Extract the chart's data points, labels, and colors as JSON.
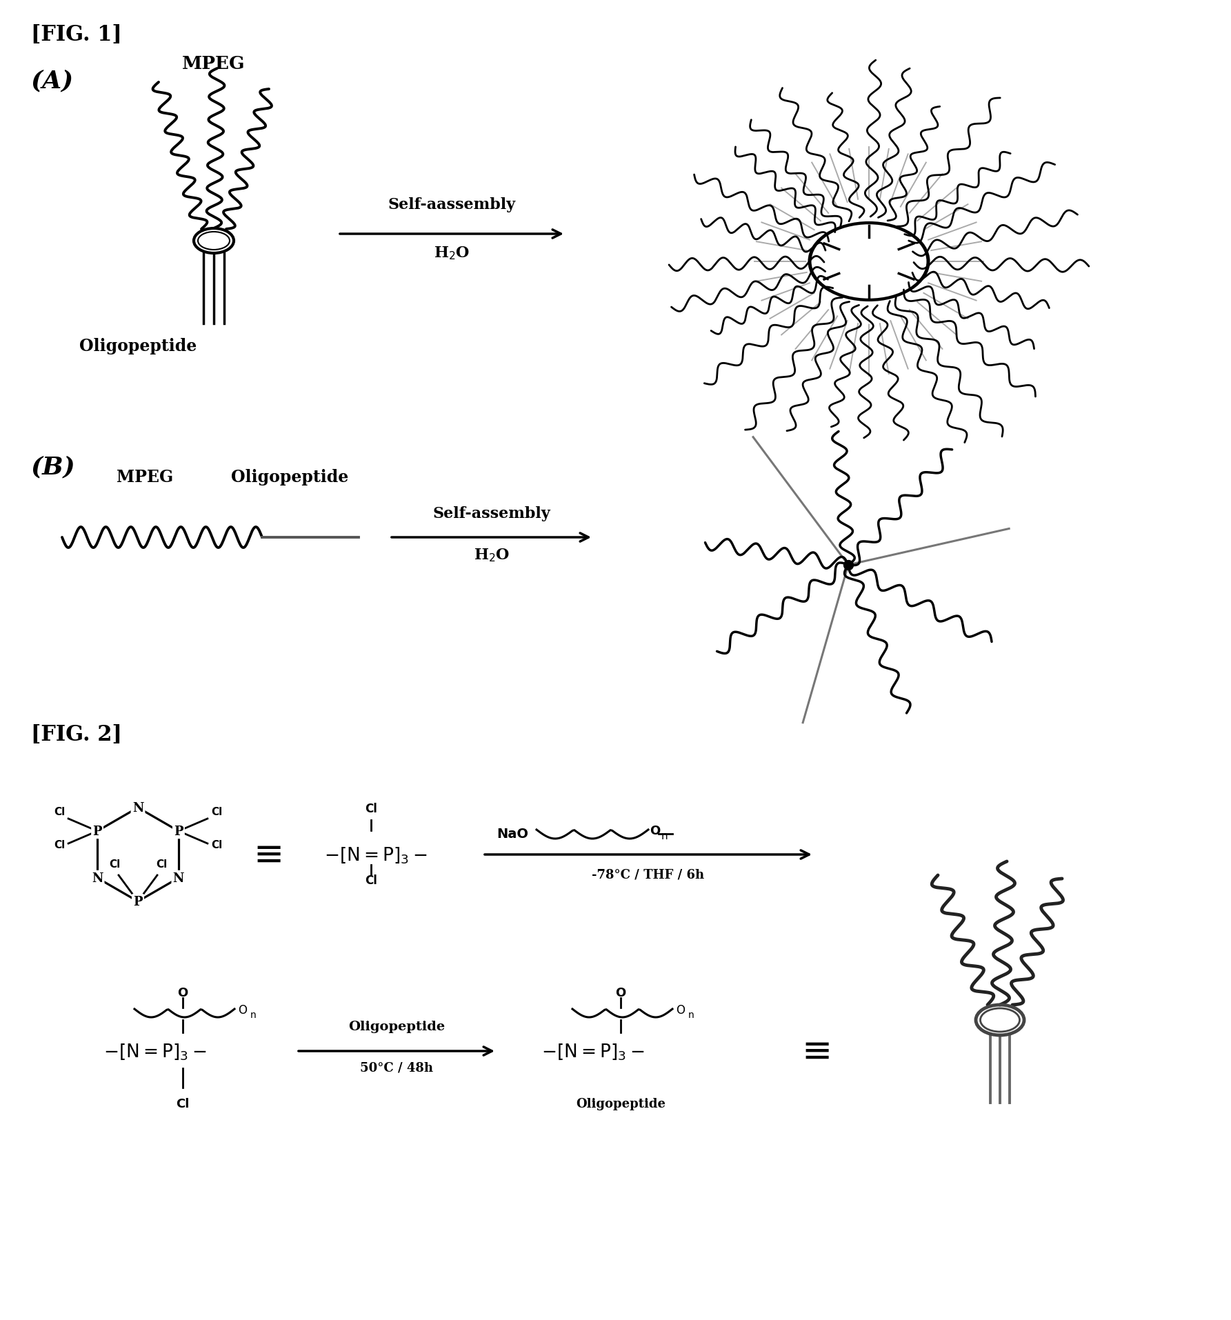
{
  "fig1_label": "[FIG. 1]",
  "fig2_label": "[FIG. 2]",
  "panel_A": "(A)",
  "panel_B": "(B)",
  "mpeg": "MPEG",
  "oligopeptide": "Oligopeptide",
  "self_assembly_A": "Self-aassembly",
  "h2o": "H$_2$O",
  "self_assembly_B": "Self-assembly",
  "nao": "NaO",
  "rxn1_cond": "-78°C / THF / 6h",
  "oligopeptide_cond": "Oligopeptide",
  "rxn2_cond": "50°C / 48h",
  "oligopeptide_label2": "Oligopeptide",
  "bg": "#ffffff",
  "lc": "#000000",
  "gc": "#888888"
}
